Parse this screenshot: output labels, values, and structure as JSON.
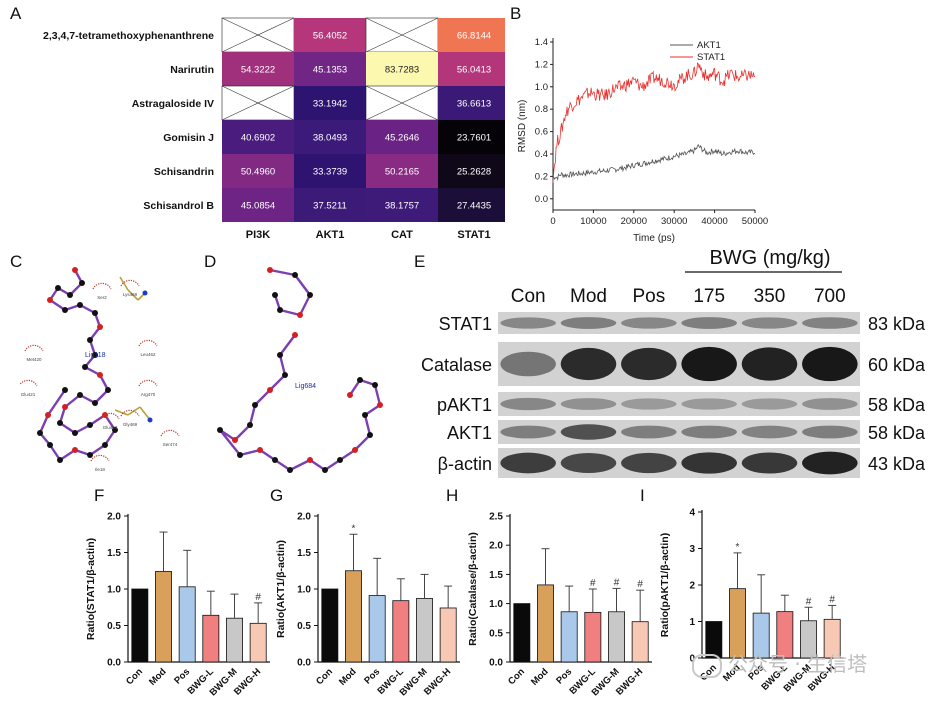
{
  "panel_labels": {
    "A": "A",
    "B": "B",
    "C": "C",
    "D": "D",
    "E": "E",
    "F": "F",
    "G": "G",
    "H": "H",
    "I": "I"
  },
  "heatmap": {
    "rows": [
      "2,3,4,7-tetramethoxyphenanthrene",
      "Narirutin",
      "Astragaloside IV",
      "Gomisin J",
      "Schisandrin",
      "Schisandrol B"
    ],
    "cols": [
      "PI3K",
      "AKT1",
      "CAT",
      "STAT1"
    ],
    "values": [
      [
        null,
        "56.4052",
        null,
        "66.8144"
      ],
      [
        "54.3222",
        "45.1353",
        "83.7283",
        "56.0413"
      ],
      [
        null,
        "33.1942",
        null,
        "36.6613"
      ],
      [
        "40.6902",
        "38.0493",
        "45.2646",
        "23.7601"
      ],
      [
        "50.4960",
        "33.3739",
        "50.2165",
        "25.2628"
      ],
      [
        "45.0854",
        "37.5211",
        "38.1757",
        "27.4435"
      ]
    ],
    "colors": [
      [
        null,
        "#b5367a",
        null,
        "#f07552"
      ],
      [
        "#a02f7c",
        "#712585",
        null,
        "#b4367a"
      ],
      [
        null,
        "#2d1470",
        null,
        "#3b1977"
      ],
      [
        "#4a1c7d",
        "#3b1a79",
        "#6a2384",
        "#050308"
      ],
      [
        "#822a83",
        "#2e1470",
        "#892b82",
        "#0e0818"
      ],
      [
        "#6d2485",
        "#3c1a78",
        "#3e1a79",
        "#1b0e38"
      ]
    ],
    "cat_narirutin_color": "#fcf8b0"
  },
  "chart_data": [
    {
      "type": "line",
      "panel": "B",
      "title": "",
      "xlabel": "Time (ps)",
      "ylabel": "RMSD (nm)",
      "xlim": [
        0,
        50000
      ],
      "ylim": [
        -0.1,
        1.4
      ],
      "xticks": [
        "0",
        "10000",
        "20000",
        "30000",
        "40000",
        "50000"
      ],
      "yticks": [
        "0.0",
        "0.2",
        "0.4",
        "0.6",
        "0.8",
        "1.0",
        "1.2",
        "1.4"
      ],
      "legend_position": "top-right",
      "series": [
        {
          "name": "AKT1",
          "color": "#555555",
          "x": [
            0,
            500,
            1000,
            2000,
            3000,
            5000,
            8000,
            10000,
            13000,
            15000,
            18000,
            20000,
            23000,
            25000,
            28000,
            30000,
            33000,
            35000,
            36000,
            38000,
            40000,
            42000,
            44000,
            46000,
            48000,
            50000
          ],
          "y": [
            0.18,
            0.2,
            0.19,
            0.22,
            0.21,
            0.22,
            0.23,
            0.24,
            0.25,
            0.26,
            0.28,
            0.3,
            0.32,
            0.34,
            0.36,
            0.38,
            0.4,
            0.43,
            0.47,
            0.41,
            0.43,
            0.4,
            0.42,
            0.43,
            0.41,
            0.42
          ]
        },
        {
          "name": "STAT1",
          "color": "#e8312f",
          "x": [
            0,
            500,
            1000,
            1500,
            2000,
            3000,
            4000,
            5000,
            7000,
            9000,
            11000,
            13000,
            15000,
            17000,
            20000,
            22000,
            25000,
            28000,
            30000,
            33000,
            35000,
            36000,
            38000,
            40000,
            42000,
            44000,
            46000,
            48000,
            50000
          ],
          "y": [
            0.2,
            0.35,
            0.5,
            0.55,
            0.6,
            0.75,
            0.82,
            0.85,
            0.9,
            0.95,
            0.93,
            0.92,
            0.98,
            1.0,
            1.05,
            1.0,
            1.08,
            1.05,
            1.02,
            1.1,
            1.12,
            1.2,
            1.08,
            1.12,
            1.05,
            1.12,
            1.08,
            1.1,
            1.1
          ]
        }
      ]
    },
    {
      "type": "bar",
      "panel": "F",
      "categories": [
        "Con",
        "Mod",
        "Pos",
        "BWG-L",
        "BWG-M",
        "BWG-H"
      ],
      "values": [
        1.0,
        1.24,
        1.03,
        0.64,
        0.6,
        0.53
      ],
      "errors": [
        0,
        0.54,
        0.5,
        0.33,
        0.33,
        0.28
      ],
      "annotations": [
        "",
        "",
        "",
        "",
        "",
        "#"
      ],
      "ylabel": "Ratio(STAT1/β-actin)",
      "ylim": [
        0,
        2.0
      ],
      "yticks": [
        "0.0",
        "0.5",
        "1.0",
        "1.5",
        "2.0"
      ],
      "colors": [
        "#0a0a0a",
        "#d9a05b",
        "#aac8ea",
        "#f08080",
        "#c8c8c8",
        "#f7c8b4"
      ]
    },
    {
      "type": "bar",
      "panel": "G",
      "categories": [
        "Con",
        "Mod",
        "Pos",
        "BWG-L",
        "BWG-M",
        "BWG-H"
      ],
      "values": [
        1.0,
        1.25,
        0.91,
        0.84,
        0.87,
        0.74
      ],
      "errors": [
        0,
        0.5,
        0.51,
        0.3,
        0.33,
        0.3
      ],
      "annotations": [
        "",
        "*",
        "",
        "",
        "",
        ""
      ],
      "ylabel": "Ratio(AKT1/β-actin)",
      "ylim": [
        0,
        2.0
      ],
      "yticks": [
        "0.0",
        "0.5",
        "1.0",
        "1.5",
        "2.0"
      ],
      "colors": [
        "#0a0a0a",
        "#d9a05b",
        "#aac8ea",
        "#f08080",
        "#c8c8c8",
        "#f7c8b4"
      ]
    },
    {
      "type": "bar",
      "panel": "H",
      "categories": [
        "Con",
        "Mod",
        "Pos",
        "BWG-L",
        "BWG-M",
        "BWG-H"
      ],
      "values": [
        1.0,
        1.32,
        0.86,
        0.85,
        0.86,
        0.69
      ],
      "errors": [
        0,
        0.62,
        0.44,
        0.4,
        0.4,
        0.54
      ],
      "annotations": [
        "",
        "",
        "",
        "#",
        "#",
        "#"
      ],
      "ylabel": "Ratio(Catalase/β-actin)",
      "ylim": [
        0,
        2.5
      ],
      "yticks": [
        "0.0",
        "0.5",
        "1.0",
        "1.5",
        "2.0",
        "2.5"
      ],
      "colors": [
        "#0a0a0a",
        "#d9a05b",
        "#aac8ea",
        "#f08080",
        "#c8c8c8",
        "#f7c8b4"
      ]
    },
    {
      "type": "bar",
      "panel": "I",
      "categories": [
        "Con",
        "Mod",
        "Pos",
        "BWG-L",
        "BWG-M",
        "BWG-H"
      ],
      "values": [
        1.0,
        1.9,
        1.23,
        1.27,
        1.02,
        1.06
      ],
      "errors": [
        0,
        0.98,
        1.05,
        0.45,
        0.37,
        0.38
      ],
      "annotations": [
        "",
        "*",
        "",
        "",
        "#",
        "#"
      ],
      "ylabel": "Ratio(pAKT1/β-actin)",
      "ylim": [
        0,
        4
      ],
      "yticks": [
        "0",
        "1",
        "2",
        "3",
        "4"
      ],
      "colors": [
        "#0a0a0a",
        "#d9a05b",
        "#aac8ea",
        "#f08080",
        "#c8c8c8",
        "#f7c8b4"
      ]
    }
  ],
  "docking_C": {
    "ligand_label": "Lig118",
    "residues": [
      "Lys469",
      "Ser2",
      "Leu462",
      "Met420",
      "Glu421",
      "Arg470",
      "Gly469",
      "Glu463",
      "Ser474",
      "Ile18"
    ]
  },
  "docking_D": {
    "ligand_label": "Lig684"
  },
  "blot": {
    "header": "BWG (mg/kg)",
    "lanes": [
      "Con",
      "Mod",
      "Pos",
      "175",
      "350",
      "700"
    ],
    "proteins": [
      "STAT1",
      "Catalase",
      "pAKT1",
      "AKT1",
      "β-actin"
    ],
    "sizes": [
      "83 kDa",
      "60 kDa",
      "58 kDa",
      "58 kDa",
      "43 kDa"
    ],
    "intensity": [
      [
        0.35,
        0.4,
        0.35,
        0.4,
        0.35,
        0.38
      ],
      [
        0.45,
        0.85,
        0.85,
        0.95,
        0.9,
        0.95
      ],
      [
        0.35,
        0.3,
        0.25,
        0.25,
        0.25,
        0.3
      ],
      [
        0.4,
        0.65,
        0.4,
        0.4,
        0.38,
        0.4
      ],
      [
        0.75,
        0.7,
        0.72,
        0.8,
        0.78,
        0.9
      ]
    ]
  },
  "watermark": "公众号 · 生信塔"
}
